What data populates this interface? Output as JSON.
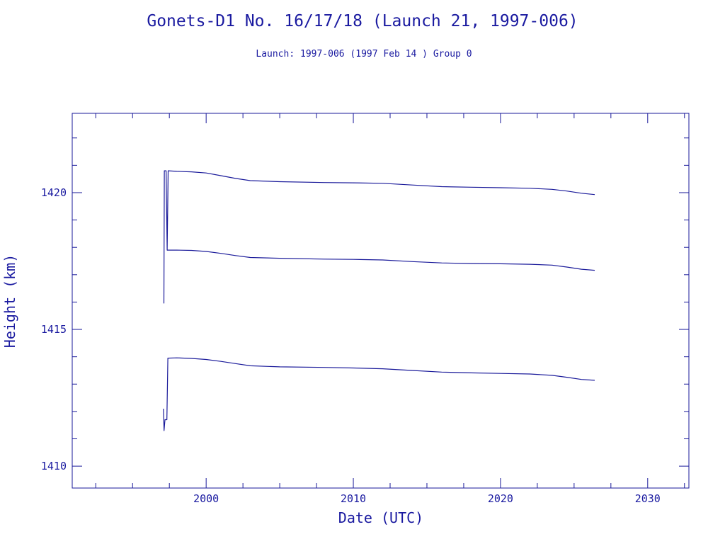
{
  "colors": {
    "ink": "#1a1a9a",
    "background": "#ffffff"
  },
  "chart_data": {
    "type": "line",
    "title": "Gonets-D1 No. 16/17/18 (Launch 21, 1997-006)",
    "subtitle": "Launch: 1997-006  (1997 Feb 14 )  Group 0",
    "xlabel": "Date (UTC)",
    "ylabel": "Height (km)",
    "xlim": [
      1990.9,
      2032.8
    ],
    "ylim": [
      1409.2,
      1422.9
    ],
    "xticks": [
      2000,
      2010,
      2020,
      2030
    ],
    "xtick_labels": [
      "2000",
      "2010",
      "2020",
      "2030"
    ],
    "yticks": [
      1410,
      1415,
      1420
    ],
    "ytick_labels": [
      "1410",
      "1415",
      "1420"
    ],
    "grid": false,
    "series": [
      {
        "values": [
          [
            1997.13,
            1415.95
          ],
          [
            1997.16,
            1420.8
          ],
          [
            1997.28,
            1420.8
          ],
          [
            1997.35,
            1417.9
          ],
          [
            1997.42,
            1420.8
          ],
          [
            1998.0,
            1420.78
          ],
          [
            1999.0,
            1420.76
          ],
          [
            2000.0,
            1420.72
          ],
          [
            2001.0,
            1420.62
          ],
          [
            2002.0,
            1420.52
          ],
          [
            2003.0,
            1420.44
          ],
          [
            2005.0,
            1420.4
          ],
          [
            2008.0,
            1420.37
          ],
          [
            2010.0,
            1420.36
          ],
          [
            2012.0,
            1420.34
          ],
          [
            2014.0,
            1420.28
          ],
          [
            2016.0,
            1420.22
          ],
          [
            2018.0,
            1420.2
          ],
          [
            2020.0,
            1420.18
          ],
          [
            2022.0,
            1420.16
          ],
          [
            2023.5,
            1420.12
          ],
          [
            2024.5,
            1420.06
          ],
          [
            2025.5,
            1419.98
          ],
          [
            2026.4,
            1419.93
          ]
        ]
      },
      {
        "values": [
          [
            1997.35,
            1417.9
          ],
          [
            1998.0,
            1417.9
          ],
          [
            1999.0,
            1417.89
          ],
          [
            2000.0,
            1417.85
          ],
          [
            2001.0,
            1417.78
          ],
          [
            2002.0,
            1417.7
          ],
          [
            2003.0,
            1417.63
          ],
          [
            2005.0,
            1417.6
          ],
          [
            2008.0,
            1417.57
          ],
          [
            2010.0,
            1417.56
          ],
          [
            2012.0,
            1417.54
          ],
          [
            2014.0,
            1417.48
          ],
          [
            2016.0,
            1417.43
          ],
          [
            2018.0,
            1417.41
          ],
          [
            2020.0,
            1417.4
          ],
          [
            2022.0,
            1417.38
          ],
          [
            2023.5,
            1417.35
          ],
          [
            2024.5,
            1417.28
          ],
          [
            2025.5,
            1417.2
          ],
          [
            2026.4,
            1417.16
          ]
        ]
      },
      {
        "values": [
          [
            1997.1,
            1412.1
          ],
          [
            1997.14,
            1411.3
          ],
          [
            1997.2,
            1411.7
          ],
          [
            1997.33,
            1411.7
          ],
          [
            1997.4,
            1413.95
          ],
          [
            1998.0,
            1413.96
          ],
          [
            1999.0,
            1413.94
          ],
          [
            2000.0,
            1413.9
          ],
          [
            2001.0,
            1413.83
          ],
          [
            2002.0,
            1413.75
          ],
          [
            2003.0,
            1413.67
          ],
          [
            2005.0,
            1413.63
          ],
          [
            2008.0,
            1413.61
          ],
          [
            2010.0,
            1413.59
          ],
          [
            2012.0,
            1413.56
          ],
          [
            2014.0,
            1413.5
          ],
          [
            2016.0,
            1413.44
          ],
          [
            2018.0,
            1413.41
          ],
          [
            2020.0,
            1413.39
          ],
          [
            2022.0,
            1413.37
          ],
          [
            2023.5,
            1413.32
          ],
          [
            2024.5,
            1413.25
          ],
          [
            2025.5,
            1413.17
          ],
          [
            2026.4,
            1413.14
          ]
        ]
      }
    ]
  }
}
